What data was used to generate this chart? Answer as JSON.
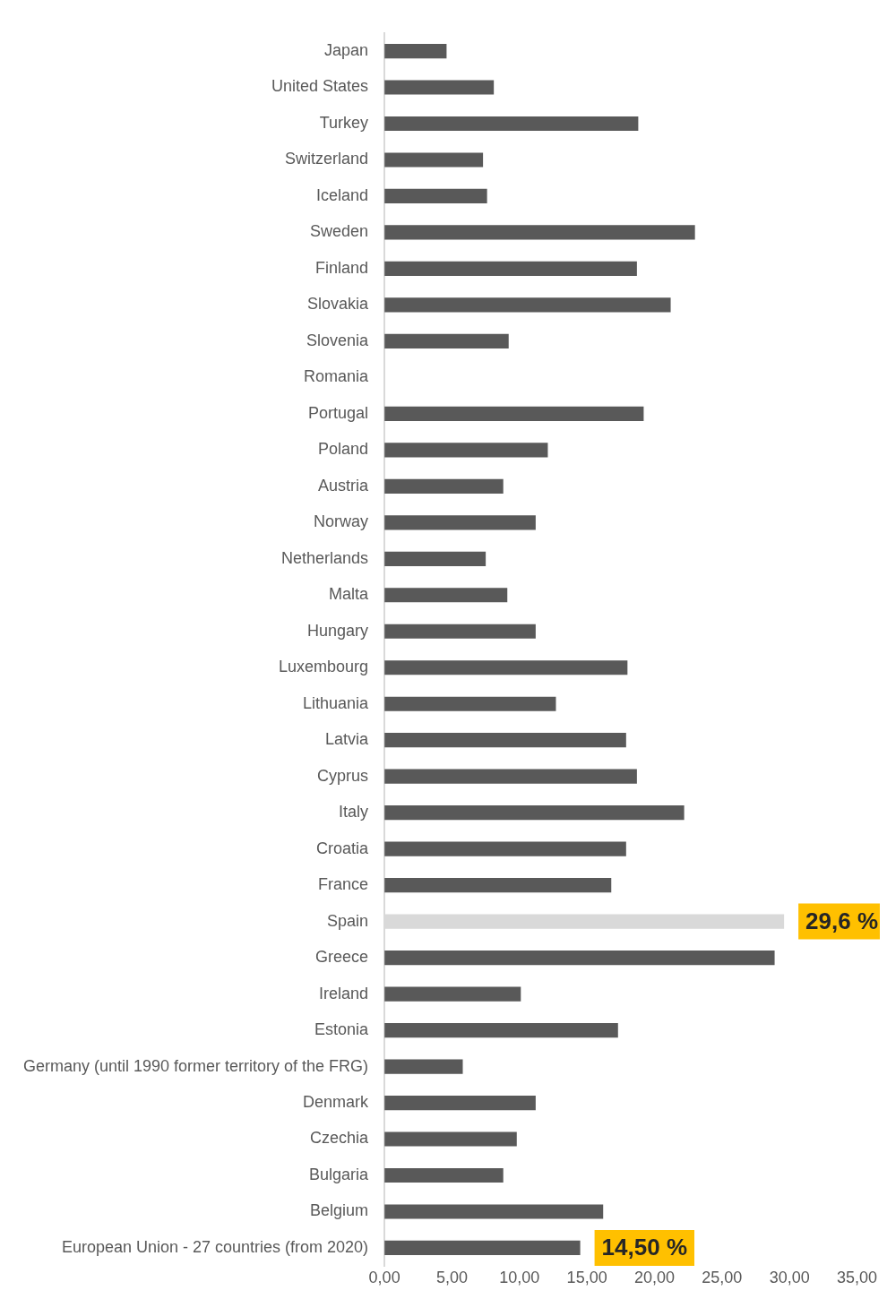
{
  "chart_data": {
    "type": "bar",
    "orientation": "horizontal",
    "categories": [
      "Japan",
      "United States",
      "Turkey",
      "Switzerland",
      "Iceland",
      "Sweden",
      "Finland",
      "Slovakia",
      "Slovenia",
      "Romania",
      "Portugal",
      "Poland",
      "Austria",
      "Norway",
      "Netherlands",
      "Malta",
      "Hungary",
      "Luxembourg",
      "Lithuania",
      "Latvia",
      "Cyprus",
      "Italy",
      "Croatia",
      "France",
      "Spain",
      "Greece",
      "Ireland",
      "Estonia",
      "Germany (until 1990 former territory of the FRG)",
      "Denmark",
      "Czechia",
      "Bulgaria",
      "Belgium",
      "European Union - 27 countries (from 2020)"
    ],
    "values": [
      4.6,
      8.1,
      18.8,
      7.3,
      7.6,
      23.0,
      18.7,
      21.2,
      9.2,
      null,
      19.2,
      12.1,
      8.8,
      11.2,
      7.5,
      9.1,
      11.2,
      18.0,
      12.7,
      17.9,
      18.7,
      22.2,
      17.9,
      16.8,
      29.6,
      28.9,
      10.1,
      17.3,
      5.8,
      11.2,
      9.8,
      8.8,
      16.2,
      14.5
    ],
    "colors": [
      "#595959",
      "#595959",
      "#595959",
      "#595959",
      "#595959",
      "#595959",
      "#595959",
      "#595959",
      "#595959",
      "#595959",
      "#595959",
      "#595959",
      "#595959",
      "#595959",
      "#595959",
      "#595959",
      "#595959",
      "#595959",
      "#595959",
      "#595959",
      "#595959",
      "#595959",
      "#595959",
      "#595959",
      "#d9d9d9",
      "#595959",
      "#595959",
      "#595959",
      "#595959",
      "#595959",
      "#595959",
      "#595959",
      "#595959",
      "#595959"
    ],
    "value_labels": [
      null,
      null,
      null,
      null,
      null,
      null,
      null,
      null,
      null,
      null,
      null,
      null,
      null,
      null,
      null,
      null,
      null,
      null,
      null,
      null,
      null,
      null,
      null,
      null,
      "29,6 %",
      null,
      null,
      null,
      null,
      null,
      null,
      null,
      null,
      "14,50 %"
    ],
    "xlim": [
      0,
      35
    ],
    "xticks": [
      {
        "value": 0,
        "label": "0,00"
      },
      {
        "value": 5,
        "label": "5,00"
      },
      {
        "value": 10,
        "label": "10,00"
      },
      {
        "value": 15,
        "label": "15,00"
      },
      {
        "value": 20,
        "label": "20,00"
      },
      {
        "value": 25,
        "label": "25,00"
      },
      {
        "value": 30,
        "label": "30,00"
      },
      {
        "value": 35,
        "label": "35,00"
      }
    ],
    "grid": false,
    "legend": false
  }
}
